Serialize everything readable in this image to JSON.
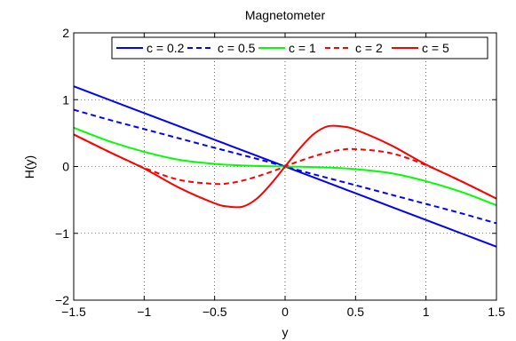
{
  "chart_data": {
    "type": "line",
    "title": "Magnetometer",
    "xlabel": "y",
    "ylabel": "H(y)",
    "xlim": [
      -1.5,
      1.5
    ],
    "ylim": [
      -2,
      2
    ],
    "xticks": [
      -1.5,
      -1,
      -0.5,
      0,
      0.5,
      1,
      1.5
    ],
    "yticks": [
      -2,
      -1,
      0,
      1,
      2
    ],
    "xtick_labels": [
      "−1.5",
      "−1",
      "−0.5",
      "0",
      "0.5",
      "1",
      "1.5"
    ],
    "ytick_labels": [
      "−2",
      "−1",
      "0",
      "1",
      "2"
    ],
    "grid": true,
    "legend": {
      "position": "top",
      "orientation": "horizontal"
    },
    "x": [
      -1.5,
      -1.25,
      -1.0,
      -0.75,
      -0.5,
      -0.4,
      -0.3,
      -0.2,
      -0.1,
      0,
      0.1,
      0.2,
      0.3,
      0.4,
      0.5,
      0.75,
      1.0,
      1.25,
      1.5
    ],
    "series": [
      {
        "name": "c = 0.2",
        "color": "#0000ff",
        "dash": "solid",
        "values": [
          1.2,
          1.0,
          0.8,
          0.6,
          0.4,
          0.32,
          0.24,
          0.16,
          0.08,
          0,
          -0.08,
          -0.16,
          -0.24,
          -0.32,
          -0.4,
          -0.6,
          -0.8,
          -1.0,
          -1.2
        ]
      },
      {
        "name": "c = 0.5",
        "color": "#0000ff",
        "dash": "dashed",
        "values": [
          0.85,
          0.7,
          0.56,
          0.42,
          0.28,
          0.225,
          0.17,
          0.115,
          0.058,
          0,
          -0.058,
          -0.115,
          -0.17,
          -0.225,
          -0.28,
          -0.42,
          -0.56,
          -0.7,
          -0.85
        ]
      },
      {
        "name": "c = 1",
        "color": "#00ff00",
        "dash": "solid",
        "values": [
          0.58,
          0.38,
          0.22,
          0.1,
          0.04,
          0.025,
          0.015,
          0.008,
          0.003,
          0,
          -0.003,
          -0.008,
          -0.015,
          -0.025,
          -0.04,
          -0.1,
          -0.22,
          -0.38,
          -0.58
        ]
      },
      {
        "name": "c = 2",
        "color": "#ff0000",
        "dash": "dashed",
        "values": [
          0.48,
          0.22,
          -0.02,
          -0.2,
          -0.26,
          -0.25,
          -0.21,
          -0.15,
          -0.08,
          0,
          0.08,
          0.15,
          0.21,
          0.25,
          0.26,
          0.2,
          0.02,
          -0.22,
          -0.48
        ]
      },
      {
        "name": "c = 5",
        "color": "#ff0000",
        "dash": "solid",
        "values": [
          0.48,
          0.22,
          -0.03,
          -0.32,
          -0.55,
          -0.6,
          -0.6,
          -0.48,
          -0.26,
          0,
          0.26,
          0.48,
          0.6,
          0.6,
          0.55,
          0.32,
          0.03,
          -0.22,
          -0.48
        ]
      }
    ]
  }
}
